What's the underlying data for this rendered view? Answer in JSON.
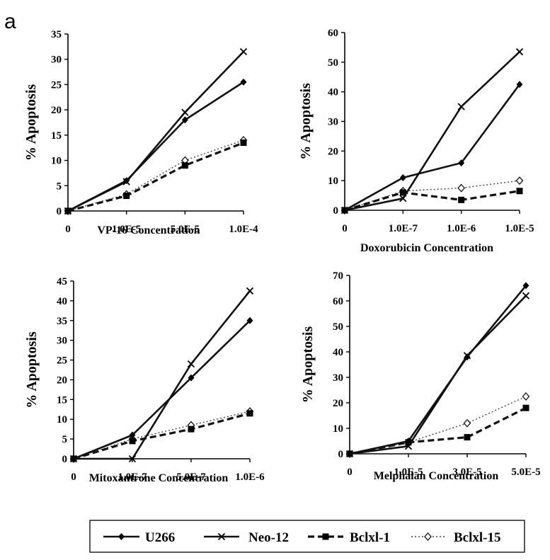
{
  "panel_label": "a",
  "ylabel": "% Apoptosis",
  "legend": {
    "placement": "bottom",
    "entries": [
      "U266",
      "Neo-12",
      "Bclxl-1",
      "Bclxl-15"
    ]
  },
  "chart_data": [
    {
      "type": "line",
      "xlabel": "VP-16 Concentration",
      "ylabel": "% Apoptosis",
      "categories": [
        "0",
        "1.0E-5",
        "5.0E-5",
        "1.0E-4"
      ],
      "ylim": [
        0,
        35
      ],
      "yticks": [
        0,
        5,
        10,
        15,
        20,
        25,
        30,
        35
      ],
      "series": [
        {
          "name": "U266",
          "values": [
            0,
            6,
            18,
            25.5
          ]
        },
        {
          "name": "Neo-12",
          "values": [
            0,
            5.8,
            19.5,
            31.5
          ]
        },
        {
          "name": "Bclxl-1",
          "values": [
            0,
            3,
            9,
            13.5
          ]
        },
        {
          "name": "Bclxl-15",
          "values": [
            0,
            3.3,
            10,
            14
          ]
        }
      ]
    },
    {
      "type": "line",
      "xlabel": "Doxorubicin Concentration",
      "ylabel": "% Apoptosis",
      "categories": [
        "0",
        "1.0E-7",
        "1.0E-6",
        "1.0E-5"
      ],
      "ylim": [
        0,
        60
      ],
      "yticks": [
        0,
        10,
        20,
        30,
        40,
        50,
        60
      ],
      "series": [
        {
          "name": "U266",
          "values": [
            0,
            11,
            16,
            42.5
          ]
        },
        {
          "name": "Neo-12",
          "values": [
            0,
            4,
            35,
            53.5
          ]
        },
        {
          "name": "Bclxl-1",
          "values": [
            0,
            6,
            3.5,
            6.5
          ]
        },
        {
          "name": "Bclxl-15",
          "values": [
            0,
            6.5,
            7.5,
            10
          ]
        }
      ]
    },
    {
      "type": "line",
      "xlabel": "Mitoxantrone Concentration",
      "ylabel": "% Apoptosis",
      "categories": [
        "0",
        "1.0E-7",
        "5.0E-7",
        "1.0E-6"
      ],
      "ylim": [
        0,
        45
      ],
      "yticks": [
        0,
        5,
        10,
        15,
        20,
        25,
        30,
        35,
        40,
        45
      ],
      "series": [
        {
          "name": "U266",
          "values": [
            0,
            6,
            20.5,
            35
          ]
        },
        {
          "name": "Neo-12",
          "values": [
            0,
            0,
            24,
            42.5
          ]
        },
        {
          "name": "Bclxl-1",
          "values": [
            0,
            4.5,
            7.5,
            11.5
          ]
        },
        {
          "name": "Bclxl-15",
          "values": [
            0,
            5,
            8.5,
            12
          ]
        }
      ]
    },
    {
      "type": "line",
      "xlabel": "Melphalan Concentration",
      "ylabel": "% Apoptosis",
      "categories": [
        "0",
        "1.0E-5",
        "3.0E-5",
        "5.0E-5"
      ],
      "ylim": [
        0,
        70
      ],
      "yticks": [
        0,
        10,
        20,
        30,
        40,
        50,
        60,
        70
      ],
      "series": [
        {
          "name": "U266",
          "values": [
            0,
            5,
            38,
            66
          ]
        },
        {
          "name": "Neo-12",
          "values": [
            0,
            3,
            38.5,
            62
          ]
        },
        {
          "name": "Bclxl-1",
          "values": [
            0,
            4.5,
            6.5,
            18
          ]
        },
        {
          "name": "Bclxl-15",
          "values": [
            0,
            4.5,
            12,
            22.5
          ]
        }
      ]
    }
  ]
}
